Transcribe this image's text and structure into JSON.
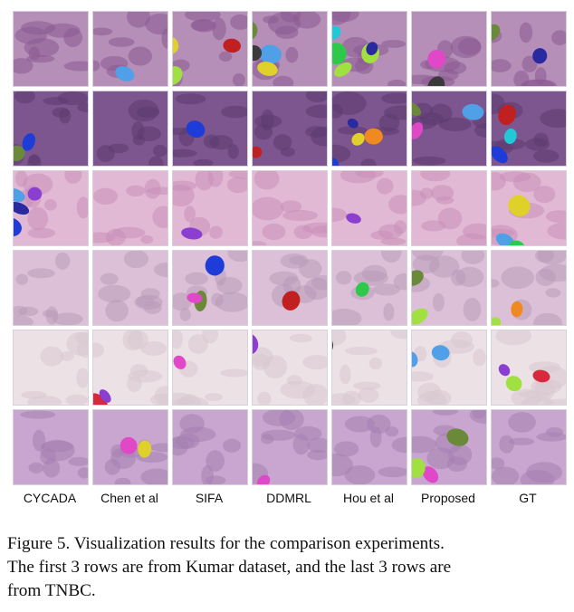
{
  "figure": {
    "columns": [
      "CYCADA",
      "Chen et al",
      "SIFA",
      "DDMRL",
      "Hou et al",
      "Proposed",
      "GT"
    ],
    "rows": [
      {
        "tissue_bg": "#b58fb8",
        "tissue_fg": "#8a5a91"
      },
      {
        "tissue_bg": "#7d5690",
        "tissue_fg": "#5b3a6e"
      },
      {
        "tissue_bg": "#e2b9d5",
        "tissue_fg": "#c88fb8"
      },
      {
        "tissue_bg": "#dcc0d8",
        "tissue_fg": "#b99ab8"
      },
      {
        "tissue_bg": "#ece1e4",
        "tissue_fg": "#d8c8cf"
      },
      {
        "tissue_bg": "#c9a6cf",
        "tissue_fg": "#a47fb0"
      }
    ],
    "caption_lines": [
      "Figure 5. Visualization results for the comparison experiments.",
      "The first 3 rows are from Kumar dataset, and the last 3 rows are",
      "from TNBC."
    ]
  }
}
